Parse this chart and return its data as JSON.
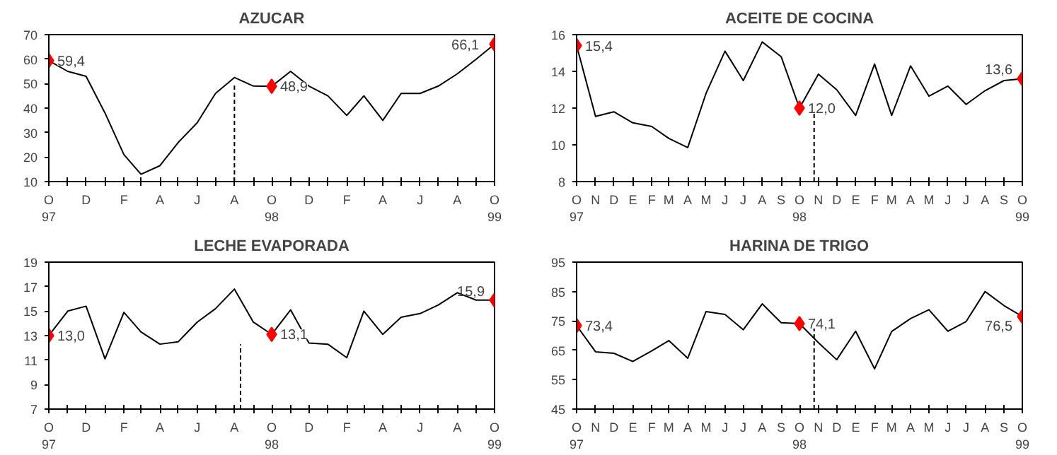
{
  "chart_data": [
    {
      "type": "line",
      "title": "AZUCAR",
      "x": [
        "1997-10",
        "1997-11",
        "1997-12",
        "1998-01",
        "1998-02",
        "1998-03",
        "1998-04",
        "1998-05",
        "1998-06",
        "1998-07",
        "1998-08",
        "1998-09",
        "1998-10",
        "1998-11",
        "1998-12",
        "1999-01",
        "1999-02",
        "1999-03",
        "1999-04",
        "1999-05",
        "1999-06",
        "1999-07",
        "1999-08",
        "1999-09",
        "1999-10"
      ],
      "series": [
        {
          "color": "#000000",
          "values": [
            59.4,
            55,
            53,
            38,
            21,
            13,
            16.5,
            26,
            34,
            46,
            52.5,
            49,
            48.9,
            55,
            49,
            45,
            37,
            45,
            35,
            46,
            46,
            49,
            54,
            60,
            66.1
          ]
        },
        {
          "type": "scatter",
          "marker": "diamond",
          "color": "#ff0000",
          "x": [
            "1997-10",
            "1998-10",
            "1999-10"
          ],
          "values": [
            59.4,
            48.9,
            66.1
          ]
        },
        {
          "type": "line",
          "line_style": "dashed",
          "color": "#000000",
          "x": [
            "1998-08",
            "1998-08"
          ],
          "values": [
            10,
            50
          ]
        }
      ],
      "xlim": [
        "1997-10",
        "1999-10"
      ],
      "xticks": [
        {
          "value": "1997-10",
          "label": "O\n97"
        },
        {
          "value": "1997-11",
          "label": null
        },
        {
          "value": "1997-12",
          "label": "D"
        },
        {
          "value": "1998-01",
          "label": null
        },
        {
          "value": "1998-02",
          "label": "F"
        },
        {
          "value": "1998-03",
          "label": null
        },
        {
          "value": "1998-04",
          "label": "A"
        },
        {
          "value": "1998-05",
          "label": null
        },
        {
          "value": "1998-06",
          "label": "J"
        },
        {
          "value": "1998-07",
          "label": null
        },
        {
          "value": "1998-08",
          "label": "A"
        },
        {
          "value": "1998-09",
          "label": null
        },
        {
          "value": "1998-10",
          "label": "O\n98"
        },
        {
          "value": "1998-11",
          "label": null
        },
        {
          "value": "1998-12",
          "label": "D"
        },
        {
          "value": "1999-01",
          "label": null
        },
        {
          "value": "1999-02",
          "label": "F"
        },
        {
          "value": "1999-03",
          "label": null
        },
        {
          "value": "1999-04",
          "label": "A"
        },
        {
          "value": "1999-05",
          "label": null
        },
        {
          "value": "1999-06",
          "label": "J"
        },
        {
          "value": "1999-07",
          "label": null
        },
        {
          "value": "1999-08",
          "label": "A"
        },
        {
          "value": "1999-09",
          "label": null
        },
        {
          "value": "1999-10",
          "label": "O\n99"
        }
      ],
      "ylim": [
        10,
        70
      ],
      "yticks": [
        10,
        20,
        30,
        40,
        50,
        60,
        70
      ],
      "annotations": [
        {
          "text": "59,4",
          "x": "1997-10",
          "y": 59.4
        },
        {
          "text": "48,9",
          "x": "1998-10",
          "y": 48.9
        },
        {
          "text": "66,1",
          "x": "1999-10",
          "y": 66.1
        }
      ],
      "grid": false
    },
    {
      "type": "line",
      "title": "ACEITE DE COCINA",
      "x": [
        "1997-10",
        "1997-11",
        "1997-12",
        "1998-01",
        "1998-02",
        "1998-03",
        "1998-04",
        "1998-05",
        "1998-06",
        "1998-07",
        "1998-08",
        "1998-09",
        "1998-10",
        "1998-11",
        "1998-12",
        "1999-01",
        "1999-02",
        "1999-03",
        "1999-04",
        "1999-05",
        "1999-06",
        "1999-07",
        "1999-08",
        "1999-09",
        "1999-10"
      ],
      "series": [
        {
          "color": "#000000",
          "values": [
            15.4,
            11.55,
            11.8,
            11.2,
            11.0,
            10.35,
            9.85,
            12.8,
            15.1,
            13.5,
            15.6,
            14.8,
            12.0,
            13.85,
            13.0,
            11.6,
            14.4,
            11.6,
            14.3,
            12.65,
            13.2,
            12.2,
            12.95,
            13.5,
            13.6
          ]
        },
        {
          "type": "scatter",
          "marker": "diamond",
          "color": "#ff0000",
          "x": [
            "1997-10",
            "1998-10",
            "1999-10"
          ],
          "values": [
            15.4,
            12.0,
            13.6
          ]
        },
        {
          "type": "line",
          "line_style": "dashed",
          "color": "#000000",
          "x": [
            "1998-10-25",
            "1998-10-25"
          ],
          "values": [
            8,
            11.9
          ]
        }
      ],
      "xlim": [
        "1997-10",
        "1999-10"
      ],
      "xticks": [
        {
          "value": "1997-10",
          "label": "O\n97"
        },
        {
          "value": "1997-11",
          "label": "N"
        },
        {
          "value": "1997-12",
          "label": "D"
        },
        {
          "value": "1998-01",
          "label": "E"
        },
        {
          "value": "1998-02",
          "label": "F"
        },
        {
          "value": "1998-03",
          "label": "M"
        },
        {
          "value": "1998-04",
          "label": "A"
        },
        {
          "value": "1998-05",
          "label": "M"
        },
        {
          "value": "1998-06",
          "label": "J"
        },
        {
          "value": "1998-07",
          "label": "J"
        },
        {
          "value": "1998-08",
          "label": "A"
        },
        {
          "value": "1998-09",
          "label": "S"
        },
        {
          "value": "1998-10",
          "label": "O\n98"
        },
        {
          "value": "1998-11",
          "label": "N"
        },
        {
          "value": "1998-12",
          "label": "D"
        },
        {
          "value": "1999-01",
          "label": "E"
        },
        {
          "value": "1999-02",
          "label": "F"
        },
        {
          "value": "1999-03",
          "label": "M"
        },
        {
          "value": "1999-04",
          "label": "A"
        },
        {
          "value": "1999-05",
          "label": "M"
        },
        {
          "value": "1999-06",
          "label": "J"
        },
        {
          "value": "1999-07",
          "label": "J"
        },
        {
          "value": "1999-08",
          "label": "A"
        },
        {
          "value": "1999-09",
          "label": "S"
        },
        {
          "value": "1999-10",
          "label": "O\n99"
        }
      ],
      "ylim": [
        8,
        16
      ],
      "yticks": [
        8,
        10,
        12,
        14,
        16
      ],
      "annotations": [
        {
          "text": "15,4",
          "x": "1997-10",
          "y": 15.4
        },
        {
          "text": "12,0",
          "x": "1998-10",
          "y": 12.0
        },
        {
          "text": "13,6",
          "x": "1999-10",
          "y": 13.6
        }
      ],
      "grid": false
    },
    {
      "type": "line",
      "title": "LECHE EVAPORADA",
      "x": [
        "1997-10",
        "1997-11",
        "1997-12",
        "1998-01",
        "1998-02",
        "1998-03",
        "1998-04",
        "1998-05",
        "1998-06",
        "1998-07",
        "1998-08",
        "1998-09",
        "1998-10",
        "1998-11",
        "1998-12",
        "1999-01",
        "1999-02",
        "1999-03",
        "1999-04",
        "1999-05",
        "1999-06",
        "1999-07",
        "1999-08",
        "1999-09",
        "1999-10"
      ],
      "series": [
        {
          "color": "#000000",
          "values": [
            13.0,
            15.0,
            15.4,
            11.1,
            14.9,
            13.3,
            12.3,
            12.5,
            14.1,
            15.2,
            16.8,
            14.1,
            13.1,
            15.1,
            12.4,
            12.3,
            11.2,
            15.0,
            13.1,
            14.5,
            14.8,
            15.5,
            16.5,
            15.9,
            15.9
          ]
        },
        {
          "type": "scatter",
          "marker": "diamond",
          "color": "#ff0000",
          "x": [
            "1997-10",
            "1998-10",
            "1999-10"
          ],
          "values": [
            13.0,
            13.1,
            15.9
          ]
        },
        {
          "type": "line",
          "line_style": "dashed",
          "color": "#000000",
          "x": [
            "1998-08-11",
            "1998-08-11"
          ],
          "values": [
            7,
            12.3
          ]
        }
      ],
      "xlim": [
        "1997-10",
        "1999-10"
      ],
      "xticks": [
        {
          "value": "1997-10",
          "label": "O\n97"
        },
        {
          "value": "1997-11",
          "label": null
        },
        {
          "value": "1997-12",
          "label": "D"
        },
        {
          "value": "1998-01",
          "label": null
        },
        {
          "value": "1998-02",
          "label": "F"
        },
        {
          "value": "1998-03",
          "label": null
        },
        {
          "value": "1998-04",
          "label": "A"
        },
        {
          "value": "1998-05",
          "label": null
        },
        {
          "value": "1998-06",
          "label": "J"
        },
        {
          "value": "1998-07",
          "label": null
        },
        {
          "value": "1998-08",
          "label": "A"
        },
        {
          "value": "1998-09",
          "label": null
        },
        {
          "value": "1998-10",
          "label": "O\n98"
        },
        {
          "value": "1998-11",
          "label": null
        },
        {
          "value": "1998-12",
          "label": "D"
        },
        {
          "value": "1999-01",
          "label": null
        },
        {
          "value": "1999-02",
          "label": "F"
        },
        {
          "value": "1999-03",
          "label": null
        },
        {
          "value": "1999-04",
          "label": "A"
        },
        {
          "value": "1999-05",
          "label": null
        },
        {
          "value": "1999-06",
          "label": "J"
        },
        {
          "value": "1999-07",
          "label": null
        },
        {
          "value": "1999-08",
          "label": "A"
        },
        {
          "value": "1999-09",
          "label": null
        },
        {
          "value": "1999-10",
          "label": "O\n99"
        }
      ],
      "ylim": [
        7,
        19
      ],
      "yticks": [
        7,
        9,
        11,
        13,
        15,
        17,
        19
      ],
      "annotations": [
        {
          "text": "13,0",
          "x": "1997-10",
          "y": 13.0
        },
        {
          "text": "13,1",
          "x": "1998-10",
          "y": 13.1
        },
        {
          "text": "15,9",
          "x": "1999-10",
          "y": 15.9
        }
      ],
      "grid": false
    },
    {
      "type": "line",
      "title": "HARINA DE TRIGO",
      "x": [
        "1997-10",
        "1997-11",
        "1997-12",
        "1998-01",
        "1998-02",
        "1998-03",
        "1998-04",
        "1998-05",
        "1998-06",
        "1998-07",
        "1998-08",
        "1998-09",
        "1998-10",
        "1998-11",
        "1998-12",
        "1999-01",
        "1999-02",
        "1999-03",
        "1999-04",
        "1999-05",
        "1999-06",
        "1999-07",
        "1999-08",
        "1999-09",
        "1999-10"
      ],
      "series": [
        {
          "color": "#000000",
          "values": [
            73.4,
            64.5,
            64.0,
            61.2,
            64.8,
            68.3,
            62.3,
            78.2,
            77.2,
            72.0,
            80.8,
            74.4,
            74.1,
            67.6,
            61.8,
            71.5,
            58.7,
            71.4,
            75.8,
            78.8,
            71.5,
            74.8,
            85.0,
            80.2,
            76.5
          ]
        },
        {
          "type": "scatter",
          "marker": "diamond",
          "color": "#ff0000",
          "x": [
            "1997-10",
            "1998-10",
            "1999-10"
          ],
          "values": [
            73.4,
            74.1,
            76.5
          ]
        },
        {
          "type": "line",
          "line_style": "dashed",
          "color": "#000000",
          "x": [
            "1998-10-25",
            "1998-10-25"
          ],
          "values": [
            45,
            74
          ]
        }
      ],
      "xlim": [
        "1997-10",
        "1999-10"
      ],
      "xticks": [
        {
          "value": "1997-10",
          "label": "O\n97"
        },
        {
          "value": "1997-11",
          "label": "N"
        },
        {
          "value": "1997-12",
          "label": "D"
        },
        {
          "value": "1998-01",
          "label": "E"
        },
        {
          "value": "1998-02",
          "label": "F"
        },
        {
          "value": "1998-03",
          "label": "M"
        },
        {
          "value": "1998-04",
          "label": "A"
        },
        {
          "value": "1998-05",
          "label": "M"
        },
        {
          "value": "1998-06",
          "label": "J"
        },
        {
          "value": "1998-07",
          "label": "J"
        },
        {
          "value": "1998-08",
          "label": "A"
        },
        {
          "value": "1998-09",
          "label": "S"
        },
        {
          "value": "1998-10",
          "label": "O\n98"
        },
        {
          "value": "1998-11",
          "label": "N"
        },
        {
          "value": "1998-12",
          "label": "D"
        },
        {
          "value": "1999-01",
          "label": "E"
        },
        {
          "value": "1999-02",
          "label": "F"
        },
        {
          "value": "1999-03",
          "label": "M"
        },
        {
          "value": "1999-04",
          "label": "A"
        },
        {
          "value": "1999-05",
          "label": "M"
        },
        {
          "value": "1999-06",
          "label": "J"
        },
        {
          "value": "1999-07",
          "label": "J"
        },
        {
          "value": "1999-08",
          "label": "A"
        },
        {
          "value": "1999-09",
          "label": "S"
        },
        {
          "value": "1999-10",
          "label": "O\n99"
        }
      ],
      "ylim": [
        45,
        95
      ],
      "yticks": [
        45,
        55,
        65,
        75,
        85,
        95
      ],
      "annotations": [
        {
          "text": "73,4",
          "x": "1997-10",
          "y": 73.4
        },
        {
          "text": "74,1",
          "x": "1998-10",
          "y": 74.1
        },
        {
          "text": "76,5",
          "x": "1999-10",
          "y": 76.5
        }
      ],
      "grid": false
    }
  ]
}
